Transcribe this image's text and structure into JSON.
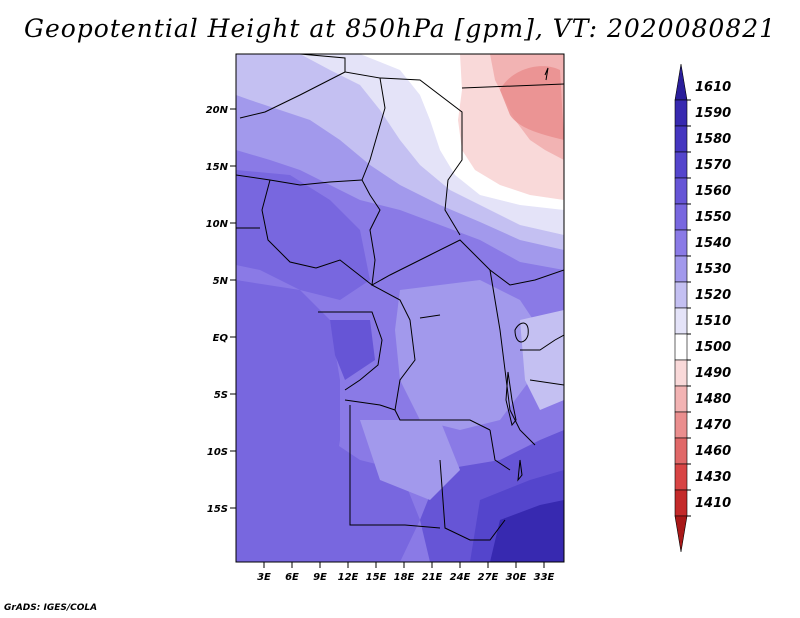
{
  "title": "Geopotential Height at 850hPa [gpm], VT: 2020080821",
  "credit": "GrADS: IGES/COLA",
  "lat_labels": [
    "20N",
    "15N",
    "10N",
    "5N",
    "EQ",
    "5S",
    "10S",
    "15S"
  ],
  "lon_labels": [
    "3E",
    "6E",
    "9E",
    "12E",
    "15E",
    "18E",
    "21E",
    "24E",
    "27E",
    "30E",
    "33E"
  ],
  "colorbar": {
    "labels": [
      "1610",
      "1590",
      "1580",
      "1570",
      "1560",
      "1550",
      "1540",
      "1530",
      "1520",
      "1510",
      "1500",
      "1490",
      "1480",
      "1470",
      "1460",
      "1430",
      "1410"
    ],
    "colors": [
      "#2a1e9a",
      "#3729b0",
      "#4536c0",
      "#5445cc",
      "#6655d6",
      "#7867df",
      "#8a7ae6",
      "#a299ec",
      "#c4c0f2",
      "#e4e3f8",
      "#ffffff",
      "#f9d9d9",
      "#f2b3b3",
      "#ea8e8e",
      "#e06868",
      "#d84444",
      "#c42a2a",
      "#a81818"
    ]
  },
  "map_regions": {
    "north_plateau": "#e4e3f8",
    "northeast_low": "#f2b3b3",
    "central_basin": "#a299ec",
    "west_coast": "#7867df",
    "south_east": "#3729b0"
  }
}
